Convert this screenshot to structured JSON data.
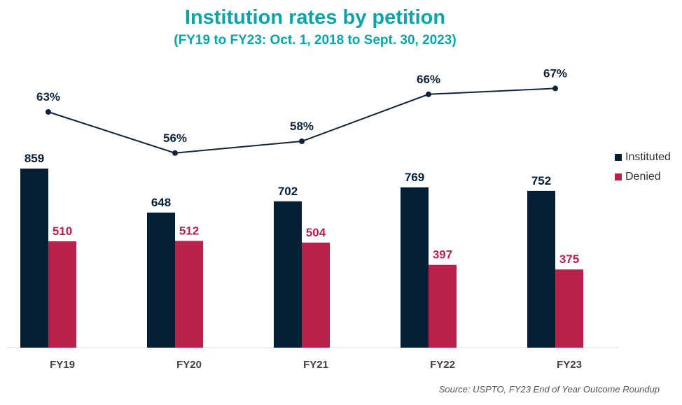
{
  "chart_data": {
    "type": "bar",
    "title": "Institution rates by petition",
    "subtitle": "(FY19 to FY23: Oct. 1, 2018 to Sept. 30, 2023)",
    "categories": [
      "FY19",
      "FY20",
      "FY21",
      "FY22",
      "FY23"
    ],
    "series": [
      {
        "name": "Instituted",
        "values": [
          859,
          648,
          702,
          769,
          752
        ],
        "labels": [
          "859",
          "648",
          "702",
          "769",
          "752"
        ],
        "color": "#041e36"
      },
      {
        "name": "Denied",
        "values": [
          510,
          512,
          504,
          397,
          375
        ],
        "labels": [
          "510",
          "512",
          "504",
          "397",
          "375"
        ],
        "color": "#b8224a"
      }
    ],
    "rate_line": {
      "values": [
        63,
        56,
        58,
        66,
        67
      ],
      "labels": [
        "63%",
        "56%",
        "58%",
        "66%",
        "67%"
      ],
      "color": "#12243a"
    },
    "legend_position": "right",
    "grid": false
  },
  "source": "Source: USPTO, FY23 End of Year Outcome Roundup"
}
